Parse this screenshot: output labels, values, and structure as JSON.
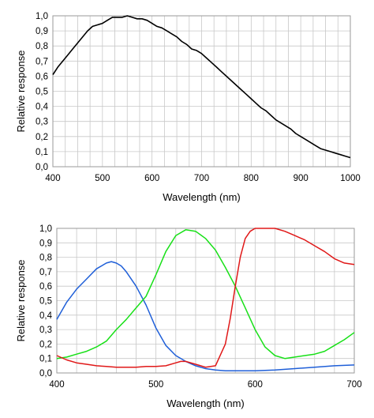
{
  "chart_data": [
    {
      "type": "line",
      "xlabel": "Wavelength (nm)",
      "ylabel": "Relative response",
      "xlim": [
        400,
        1000
      ],
      "ylim": [
        0,
        1
      ],
      "x_ticks": [
        "400",
        "500",
        "600",
        "700",
        "800",
        "900",
        "1000"
      ],
      "y_ticks": [
        "0,0",
        "0,1",
        "0,2",
        "0,3",
        "0,4",
        "0,5",
        "0,6",
        "0,7",
        "0,8",
        "0,9",
        "1,0"
      ],
      "grid": true,
      "series": [
        {
          "color": "#000000",
          "x": [
            400,
            410,
            420,
            430,
            440,
            450,
            460,
            470,
            480,
            490,
            500,
            510,
            520,
            530,
            540,
            550,
            560,
            570,
            580,
            590,
            600,
            610,
            620,
            630,
            640,
            650,
            660,
            670,
            680,
            690,
            700,
            710,
            720,
            730,
            740,
            750,
            760,
            770,
            780,
            790,
            800,
            810,
            820,
            830,
            840,
            850,
            860,
            870,
            880,
            890,
            900,
            910,
            920,
            930,
            940,
            950,
            960,
            970,
            980,
            990,
            1000
          ],
          "y": [
            0.61,
            0.66,
            0.7,
            0.74,
            0.78,
            0.82,
            0.86,
            0.9,
            0.93,
            0.94,
            0.95,
            0.97,
            0.99,
            0.99,
            0.99,
            1.0,
            0.99,
            0.98,
            0.98,
            0.97,
            0.95,
            0.93,
            0.92,
            0.9,
            0.88,
            0.86,
            0.83,
            0.81,
            0.78,
            0.77,
            0.75,
            0.72,
            0.69,
            0.66,
            0.63,
            0.6,
            0.57,
            0.54,
            0.51,
            0.48,
            0.45,
            0.42,
            0.39,
            0.37,
            0.34,
            0.31,
            0.29,
            0.27,
            0.25,
            0.22,
            0.2,
            0.18,
            0.16,
            0.14,
            0.12,
            0.11,
            0.1,
            0.09,
            0.08,
            0.07,
            0.06
          ]
        }
      ]
    },
    {
      "type": "line",
      "xlabel": "Wavelength (nm)",
      "ylabel": "Relative response",
      "xlim": [
        400,
        700
      ],
      "ylim": [
        0,
        1
      ],
      "x_ticks": [
        "400",
        "500",
        "600",
        "700"
      ],
      "y_ticks": [
        "0,0",
        "0,1",
        "0,2",
        "0,3",
        "0,4",
        "0,5",
        "0,6",
        "0,7",
        "0,8",
        "0,9",
        "1,0"
      ],
      "grid": true,
      "series": [
        {
          "color": "#1f5fd8",
          "x": [
            400,
            410,
            420,
            430,
            440,
            450,
            455,
            460,
            465,
            470,
            480,
            490,
            500,
            510,
            520,
            530,
            540,
            550,
            560,
            570,
            580,
            600,
            620,
            640,
            660,
            680,
            700
          ],
          "y": [
            0.37,
            0.49,
            0.58,
            0.65,
            0.72,
            0.76,
            0.77,
            0.76,
            0.74,
            0.7,
            0.6,
            0.47,
            0.31,
            0.19,
            0.12,
            0.08,
            0.05,
            0.03,
            0.02,
            0.015,
            0.015,
            0.015,
            0.02,
            0.03,
            0.04,
            0.05,
            0.055
          ]
        },
        {
          "color": "#18e018",
          "x": [
            400,
            410,
            420,
            430,
            440,
            450,
            460,
            470,
            480,
            490,
            500,
            510,
            520,
            530,
            540,
            550,
            560,
            570,
            580,
            590,
            600,
            610,
            620,
            630,
            640,
            650,
            660,
            670,
            680,
            690,
            700
          ],
          "y": [
            0.1,
            0.11,
            0.13,
            0.15,
            0.18,
            0.22,
            0.3,
            0.37,
            0.45,
            0.53,
            0.68,
            0.84,
            0.95,
            0.99,
            0.98,
            0.93,
            0.85,
            0.73,
            0.6,
            0.45,
            0.3,
            0.18,
            0.12,
            0.1,
            0.11,
            0.12,
            0.13,
            0.15,
            0.19,
            0.23,
            0.28
          ]
        },
        {
          "color": "#e01818",
          "x": [
            400,
            410,
            420,
            430,
            440,
            450,
            460,
            470,
            480,
            490,
            500,
            510,
            520,
            525,
            530,
            540,
            550,
            560,
            570,
            575,
            580,
            585,
            590,
            595,
            600,
            610,
            620,
            630,
            640,
            650,
            660,
            670,
            680,
            690,
            700
          ],
          "y": [
            0.12,
            0.09,
            0.07,
            0.06,
            0.05,
            0.045,
            0.04,
            0.04,
            0.04,
            0.045,
            0.045,
            0.05,
            0.07,
            0.08,
            0.08,
            0.06,
            0.04,
            0.05,
            0.2,
            0.38,
            0.6,
            0.8,
            0.93,
            0.98,
            1.0,
            1.0,
            1.0,
            0.98,
            0.95,
            0.92,
            0.88,
            0.84,
            0.79,
            0.76,
            0.75
          ]
        }
      ]
    }
  ]
}
